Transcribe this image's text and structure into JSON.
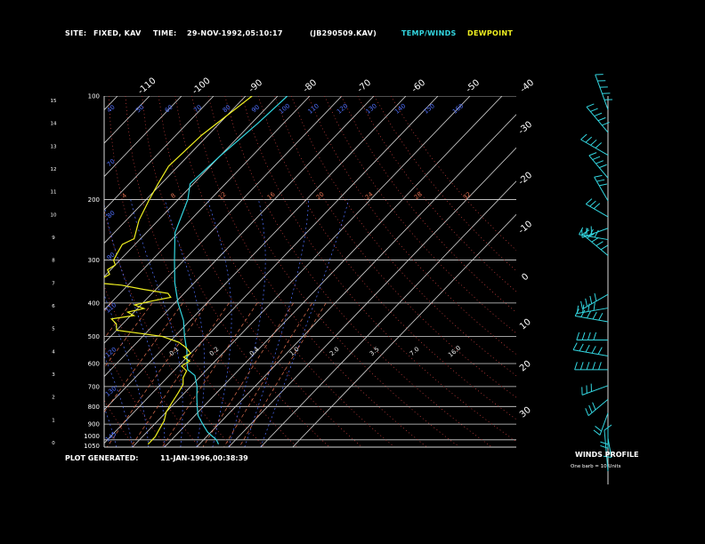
{
  "header": {
    "site_label": "SITE:",
    "site_value": "FIXED, KAV",
    "time_label": "TIME:",
    "time_value": "29-NOV-1992,05:10:17",
    "file_id": "(JB290509.KAV)",
    "temp_winds_label": "TEMP/WINDS",
    "dewpoint_label": "DEWPOINT"
  },
  "footer": {
    "generated_label": "PLOT GENERATED:",
    "generated_value": "11-JAN-1996,00:38:39",
    "winds_profile_label": "WINDS PROFILE",
    "winds_note": "One barb = 10 Units"
  },
  "colors": {
    "background": "#000000",
    "temperature": "#33d6e0",
    "dewpoint": "#f0f020",
    "isobars": "#d8d8d8",
    "isotherms": "#d8d8d8",
    "mixing_ratio": "#e07050",
    "dry_adiabats": "#d04040",
    "moist_adiabats": "#5070ff",
    "wind_barbs": "#33d6e0"
  },
  "chart_data": {
    "type": "line",
    "title": "",
    "xlabel": "",
    "ylabel": "",
    "pressure_levels": [
      100,
      200,
      300,
      400,
      500,
      600,
      700,
      800,
      900,
      1000,
      1050
    ],
    "height_ticks": [
      0,
      1,
      2,
      3,
      4,
      5,
      6,
      7,
      8,
      9,
      10,
      11,
      12,
      13,
      14,
      15
    ],
    "isotherm_top_labels": [
      "-110",
      "-100",
      "-90",
      "-80",
      "-70",
      "-60",
      "-50",
      "-40"
    ],
    "isotherm_right_labels": [
      "-30",
      "-20",
      "-10",
      "0",
      "10",
      "20",
      "30"
    ],
    "theta_labels": [
      "40",
      "50",
      "60",
      "70",
      "80",
      "90",
      "100",
      "110",
      "120",
      "130",
      "140",
      "150",
      "160"
    ],
    "mixing_labels_upper": [
      "4",
      "8",
      "12",
      "16",
      "20",
      "24",
      "28",
      "32"
    ],
    "mixing_labels_lower": [
      "0.1",
      "0.2",
      "0.4",
      "1.0",
      "2.0",
      "3.5",
      "7.0",
      "16.0"
    ],
    "series": [
      {
        "name": "TEMP/WINDS",
        "points": [
          [
            100,
            -57
          ],
          [
            120,
            -58
          ],
          [
            150,
            -60
          ],
          [
            180,
            -61
          ],
          [
            200,
            -57
          ],
          [
            250,
            -51
          ],
          [
            300,
            -43
          ],
          [
            350,
            -36
          ],
          [
            400,
            -29
          ],
          [
            450,
            -22
          ],
          [
            500,
            -17
          ],
          [
            550,
            -12
          ],
          [
            600,
            -8
          ],
          [
            625,
            -6
          ],
          [
            650,
            -2
          ],
          [
            700,
            2
          ],
          [
            750,
            5
          ],
          [
            800,
            8
          ],
          [
            850,
            11
          ],
          [
            900,
            15
          ],
          [
            950,
            19
          ],
          [
            1000,
            24
          ],
          [
            1030,
            26
          ]
        ]
      },
      {
        "name": "DEWPOINT",
        "points": [
          [
            100,
            -68
          ],
          [
            130,
            -72
          ],
          [
            160,
            -73
          ],
          [
            180,
            -71
          ],
          [
            200,
            -69
          ],
          [
            230,
            -66
          ],
          [
            260,
            -62
          ],
          [
            270,
            -64
          ],
          [
            285,
            -63
          ],
          [
            300,
            -62
          ],
          [
            310,
            -60
          ],
          [
            320,
            -61
          ],
          [
            330,
            -59
          ],
          [
            340,
            -60
          ],
          [
            350,
            -60
          ],
          [
            355,
            -52
          ],
          [
            365,
            -44
          ],
          [
            375,
            -35
          ],
          [
            385,
            -33
          ],
          [
            395,
            -38
          ],
          [
            405,
            -42
          ],
          [
            415,
            -38
          ],
          [
            425,
            -42
          ],
          [
            435,
            -39
          ],
          [
            445,
            -45
          ],
          [
            460,
            -42
          ],
          [
            480,
            -40
          ],
          [
            500,
            -24
          ],
          [
            520,
            -17
          ],
          [
            540,
            -13
          ],
          [
            560,
            -10
          ],
          [
            575,
            -11
          ],
          [
            590,
            -8
          ],
          [
            610,
            -9
          ],
          [
            630,
            -6
          ],
          [
            660,
            -5
          ],
          [
            690,
            -3
          ],
          [
            730,
            -2
          ],
          [
            780,
            -1
          ],
          [
            830,
            0
          ],
          [
            880,
            2
          ],
          [
            930,
            3
          ],
          [
            980,
            4
          ],
          [
            1030,
            4
          ]
        ]
      }
    ],
    "wind_profile": [
      {
        "h": 14.6,
        "dir": 340,
        "spd": 55
      },
      {
        "h": 13.6,
        "dir": 320,
        "spd": 45
      },
      {
        "h": 12.6,
        "dir": 300,
        "spd": 40
      },
      {
        "h": 11.6,
        "dir": 320,
        "spd": 35
      },
      {
        "h": 10.6,
        "dir": 330,
        "spd": 30
      },
      {
        "h": 9.9,
        "dir": 300,
        "spd": 25
      },
      {
        "h": 9.4,
        "dir": 250,
        "spd": 30
      },
      {
        "h": 8.9,
        "dir": 280,
        "spd": 35
      },
      {
        "h": 8.2,
        "dir": 310,
        "spd": 45
      },
      {
        "h": 6.5,
        "dir": 240,
        "spd": 35
      },
      {
        "h": 5.9,
        "dir": 260,
        "spd": 40
      },
      {
        "h": 5.3,
        "dir": 280,
        "spd": 45
      },
      {
        "h": 4.5,
        "dir": 270,
        "spd": 40
      },
      {
        "h": 3.8,
        "dir": 280,
        "spd": 50
      },
      {
        "h": 3.2,
        "dir": 270,
        "spd": 45
      },
      {
        "h": 2.5,
        "dir": 250,
        "spd": 30
      },
      {
        "h": 1.9,
        "dir": 230,
        "spd": 25
      },
      {
        "h": 1.3,
        "dir": 200,
        "spd": 20
      },
      {
        "h": 0.7,
        "dir": 180,
        "spd": 15
      },
      {
        "h": 0.2,
        "dir": 170,
        "spd": 10
      }
    ]
  }
}
